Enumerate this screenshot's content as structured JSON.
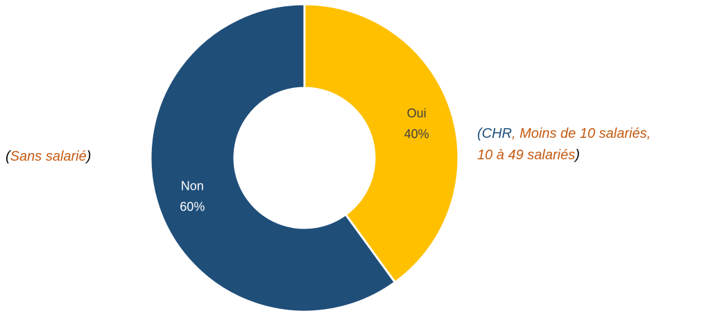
{
  "chart_data": {
    "type": "pie",
    "donut": true,
    "categories": [
      "Oui",
      "Non"
    ],
    "values": [
      40,
      60
    ],
    "data_labels": [
      {
        "category": "Oui",
        "percent": "40%"
      },
      {
        "category": "Non",
        "percent": "60%"
      }
    ],
    "colors": [
      "#ffc000",
      "#1f4e79"
    ],
    "label_colors": [
      "#404040",
      "#ffffff"
    ],
    "start_angle_deg": 0,
    "direction": "clockwise",
    "title": "",
    "legend": "none"
  },
  "annotations": {
    "left": {
      "open_paren": "(",
      "text": "Sans salarié",
      "close_paren": ")"
    },
    "right": {
      "open_paren": "(",
      "part1": "CHR",
      "sep1": ", ",
      "part2": "Moins de 10 salariés,",
      "part3": "10 à 49 salariés",
      "close_paren": ")"
    }
  },
  "colors": {
    "annotation_orange": "#c55a11",
    "annotation_blue": "#1f4e79",
    "annotation_paren": "#000000"
  }
}
